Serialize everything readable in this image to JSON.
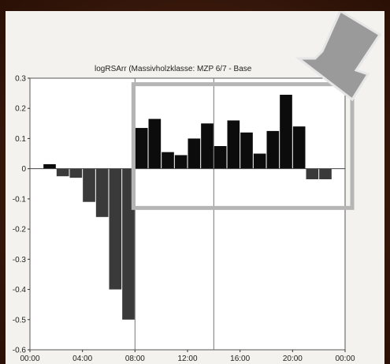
{
  "chart_data": {
    "type": "bar",
    "title": "logRSArr (Massivholzklasse: MZP 6/7 - Base",
    "x_tick_labels": [
      "00:00",
      "04:00",
      "08:00",
      "12:00",
      "16:00",
      "20:00",
      "00:00"
    ],
    "y_ticks": [
      0.3,
      0.2,
      0.1,
      0,
      -0.1,
      -0.2,
      -0.3,
      -0.4,
      -0.5,
      -0.6
    ],
    "y_tick_labels": [
      "0.3",
      "0.2",
      "0.1",
      "0",
      "-0.1",
      "-0.2",
      "-0.3",
      "-0.4",
      "-0.5",
      "-0.6"
    ],
    "ylim": [
      -0.6,
      0.3
    ],
    "xlim_hours": [
      0,
      24
    ],
    "x_hours": [
      0,
      1,
      2,
      3,
      4,
      5,
      6,
      7,
      8,
      9,
      10,
      11,
      12,
      13,
      14,
      15,
      16,
      17,
      18,
      19,
      20,
      21,
      22,
      23
    ],
    "values": [
      0,
      0.015,
      -0.025,
      -0.03,
      -0.11,
      -0.16,
      -0.4,
      -0.5,
      0.135,
      0.165,
      0.055,
      0.045,
      0.1,
      0.15,
      0.075,
      0.16,
      0.12,
      0.05,
      0.125,
      0.245,
      0.14,
      -0.035,
      -0.035,
      0
    ],
    "vertical_reference_lines_hours": [
      8,
      14
    ],
    "colors": {
      "negative_bar": "#3a3a3a",
      "positive_bar": "#0c0c0c",
      "highlight_box": "#b5b5b5",
      "arrow_fill": "#9a9a9a",
      "arrow_edge": "#e6e6e6"
    },
    "highlight": {
      "from_hour": 8,
      "to_hour": 24,
      "y_top": 0.28,
      "y_bottom": -0.13
    },
    "annotation": "arrow-pointing-to-highlight"
  }
}
